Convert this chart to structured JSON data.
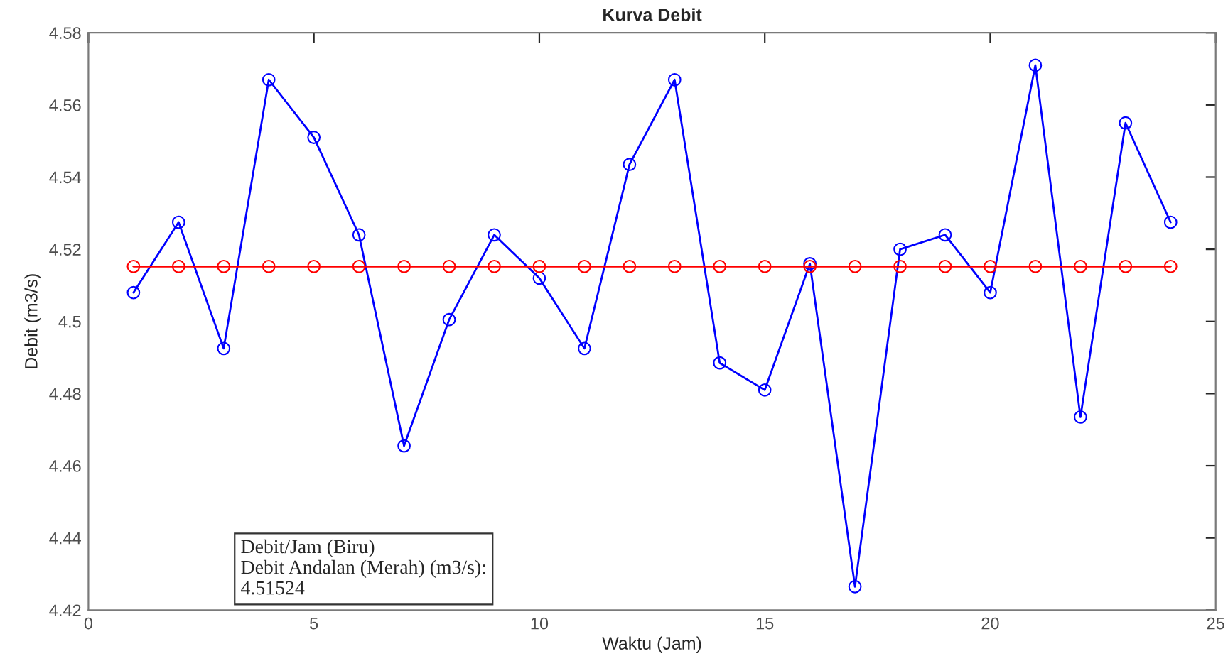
{
  "chart_data": {
    "type": "line",
    "title": "Kurva Debit",
    "xlabel": "Waktu (Jam)",
    "ylabel": "Debit (m3/s)",
    "x": [
      1,
      2,
      3,
      4,
      5,
      6,
      7,
      8,
      9,
      10,
      11,
      12,
      13,
      14,
      15,
      16,
      17,
      18,
      19,
      20,
      21,
      22,
      23,
      24
    ],
    "series": [
      {
        "color": "#0000ff",
        "values": [
          4.508,
          4.5275,
          4.4925,
          4.567,
          4.551,
          4.524,
          4.4655,
          4.5005,
          4.524,
          4.512,
          4.4925,
          4.5435,
          4.567,
          4.4885,
          4.481,
          4.516,
          4.4265,
          4.52,
          4.524,
          4.508,
          4.571,
          4.4735,
          4.555,
          4.5275
        ]
      },
      {
        "color": "#ff0000",
        "values": [
          4.51524,
          4.51524,
          4.51524,
          4.51524,
          4.51524,
          4.51524,
          4.51524,
          4.51524,
          4.51524,
          4.51524,
          4.51524,
          4.51524,
          4.51524,
          4.51524,
          4.51524,
          4.51524,
          4.51524,
          4.51524,
          4.51524,
          4.51524,
          4.51524,
          4.51524,
          4.51524,
          4.51524
        ]
      }
    ],
    "marker": "circle",
    "line_style": "solid",
    "grid": false,
    "legend": false,
    "xlim": [
      0,
      25
    ],
    "xticks": [
      0,
      5,
      10,
      15,
      20,
      25
    ],
    "ylim": [
      4.42,
      4.58
    ],
    "yticks": [
      4.42,
      4.44,
      4.46,
      4.48,
      {
        "value": 4.5,
        "label": "4.5"
      },
      4.52,
      4.54,
      4.56,
      4.58
    ],
    "annotations": [
      "Debit/Jam (Biru)\nDebit Andalan (Merah) (m3/s):\n4.51524"
    ]
  }
}
